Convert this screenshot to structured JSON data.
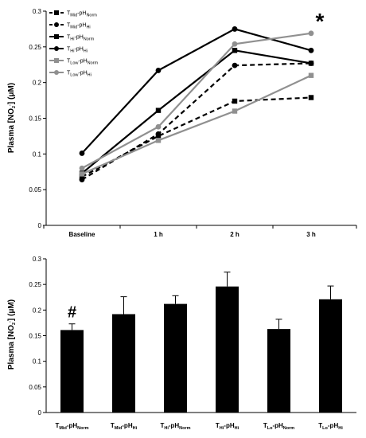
{
  "chart_data": [
    {
      "type": "line",
      "ylabel": {
        "pre": "Plasma [NO",
        "sub": "2",
        "sup": "-",
        "post": "] (μM)"
      },
      "categories": [
        "Baseline",
        "1 h",
        "2 h",
        "3 h"
      ],
      "ylim": [
        0,
        0.3
      ],
      "yticks": [
        "0",
        "0.05",
        "0.1",
        "0.15",
        "0.2",
        "0.25",
        "0.3"
      ],
      "series": [
        {
          "name": "TMid-pHNorm",
          "base": "T",
          "sub1": "Mid",
          "mid": "-pH",
          "sub2": "Norm",
          "color": "#000000",
          "dashed": true,
          "marker": "square",
          "values": [
            0.068,
            0.125,
            0.174,
            0.179
          ]
        },
        {
          "name": "TMid-pHHi",
          "base": "T",
          "sub1": "Mid",
          "mid": "-pH",
          "sub2": "Hi",
          "color": "#000000",
          "dashed": true,
          "marker": "circle",
          "values": [
            0.064,
            0.128,
            0.224,
            0.227
          ]
        },
        {
          "name": "THi-pHNorm",
          "base": "T",
          "sub1": "Hi",
          "mid": "-pH",
          "sub2": "Norm",
          "color": "#000000",
          "dashed": false,
          "marker": "square",
          "values": [
            0.073,
            0.161,
            0.245,
            0.227
          ]
        },
        {
          "name": "THi-pHHi",
          "base": "T",
          "sub1": "Hi",
          "mid": "-pH",
          "sub2": "Hi",
          "color": "#000000",
          "dashed": false,
          "marker": "circle",
          "values": [
            0.101,
            0.217,
            0.275,
            0.245
          ]
        },
        {
          "name": "TLow-pHNorm",
          "base": "T",
          "sub1": "Low",
          "mid": "-pH",
          "sub2": "Norm",
          "color": "#909090",
          "dashed": false,
          "marker": "square",
          "values": [
            0.072,
            0.119,
            0.16,
            0.21
          ]
        },
        {
          "name": "TLow-pHHi",
          "base": "T",
          "sub1": "Low",
          "mid": "-pH",
          "sub2": "Hi",
          "color": "#909090",
          "dashed": false,
          "marker": "circle",
          "values": [
            0.08,
            0.138,
            0.254,
            0.269
          ]
        }
      ],
      "annotation": "*"
    },
    {
      "type": "bar",
      "ylabel": {
        "pre": "Plasma [NO",
        "sub": "2",
        "sup": "-",
        "post": "] (μM)"
      },
      "ylim": [
        0,
        0.3
      ],
      "yticks": [
        "0",
        "0.05",
        "0.1",
        "0.15",
        "0.2",
        "0.25",
        "0.3"
      ],
      "color": "#000000",
      "categories": [
        {
          "name": "TMid-pHNorm",
          "base": "T",
          "sub1": "Mid",
          "mid": "-pH",
          "sub2": "Norm"
        },
        {
          "name": "TMid-pHHi",
          "base": "T",
          "sub1": "Mid",
          "mid": "-pH",
          "sub2": "Hi"
        },
        {
          "name": "THi-pHNorm",
          "base": "T",
          "sub1": "Hi",
          "mid": "-pH",
          "sub2": "Norm"
        },
        {
          "name": "THi-pHHi",
          "base": "T",
          "sub1": "Hi",
          "mid": "-pH",
          "sub2": "Hi"
        },
        {
          "name": "TLo-pHNorm",
          "base": "T",
          "sub1": "Lo",
          "mid": "-pH",
          "sub2": "Norm"
        },
        {
          "name": "TLo-pHHi",
          "base": "T",
          "sub1": "Lo",
          "mid": "-pH",
          "sub2": "Hi"
        }
      ],
      "values": [
        0.161,
        0.192,
        0.212,
        0.246,
        0.163,
        0.221
      ],
      "errors": [
        0.012,
        0.034,
        0.016,
        0.028,
        0.019,
        0.026
      ],
      "annotation": "#"
    }
  ]
}
